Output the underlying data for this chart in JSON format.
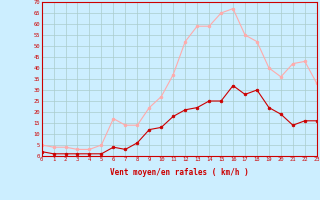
{
  "x": [
    0,
    1,
    2,
    3,
    4,
    5,
    6,
    7,
    8,
    9,
    10,
    11,
    12,
    13,
    14,
    15,
    16,
    17,
    18,
    19,
    20,
    21,
    22,
    23
  ],
  "y_mean": [
    2,
    1,
    1,
    1,
    1,
    1,
    4,
    3,
    6,
    12,
    13,
    18,
    21,
    22,
    25,
    25,
    32,
    28,
    30,
    22,
    19,
    14,
    16,
    16
  ],
  "y_gust": [
    5,
    4,
    4,
    3,
    3,
    5,
    17,
    14,
    14,
    22,
    27,
    37,
    52,
    59,
    59,
    65,
    67,
    55,
    52,
    40,
    36,
    42,
    43,
    33
  ],
  "mean_color": "#cc0000",
  "gust_color": "#ffaaaa",
  "bg_color": "#cceeff",
  "grid_color": "#aacccc",
  "xlabel": "Vent moyen/en rafales ( km/h )",
  "ylabel_ticks": [
    0,
    5,
    10,
    15,
    20,
    25,
    30,
    35,
    40,
    45,
    50,
    55,
    60,
    65,
    70
  ],
  "ylim": [
    0,
    70
  ],
  "xlim": [
    0,
    23
  ]
}
